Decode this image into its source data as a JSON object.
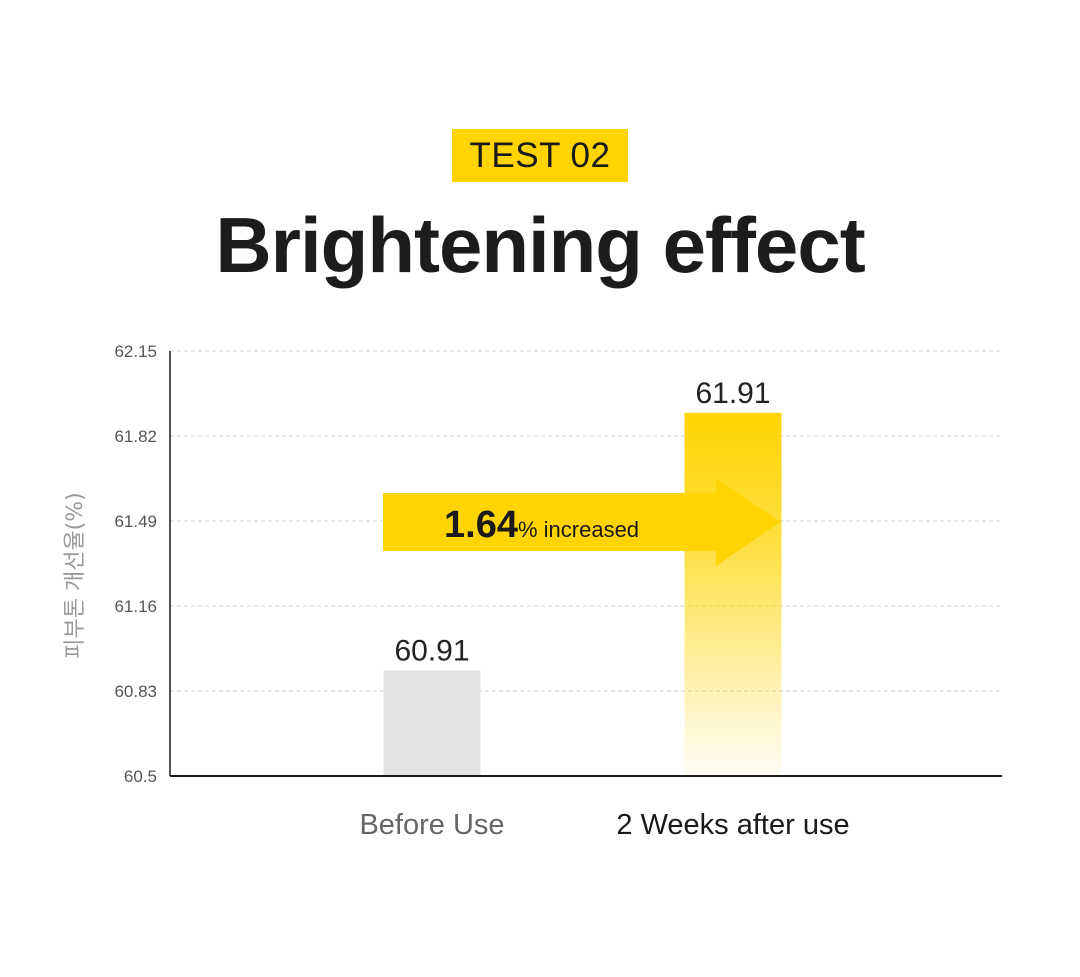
{
  "header": {
    "badge": "TEST 02",
    "title": "Brightening effect"
  },
  "chart_data": {
    "type": "bar",
    "title": "",
    "xlabel": "",
    "ylabel": "피부톤 개선율(%)",
    "categories": [
      "Before Use",
      "2 Weeks after use"
    ],
    "values": [
      60.91,
      61.91
    ],
    "value_labels": [
      "60.91",
      "61.91"
    ],
    "ylim": [
      60.5,
      62.15
    ],
    "yticks": [
      60.5,
      60.83,
      61.16,
      61.49,
      61.82,
      62.15
    ],
    "ytick_labels": [
      "60.5",
      "60.83",
      "61.16",
      "61.49",
      "61.82",
      "62.15"
    ],
    "grid": true,
    "legend": "none",
    "annotation": {
      "value": "1.64",
      "suffix": "% increased"
    },
    "colors": {
      "before_bar": "#e4e4e4",
      "after_bar": "#ffd400",
      "arrow": "#ffd400",
      "grid": "#d0d0d0",
      "axis": "#1a1a1a",
      "category_before": "#666666",
      "category_after": "#1a1a1a"
    }
  }
}
